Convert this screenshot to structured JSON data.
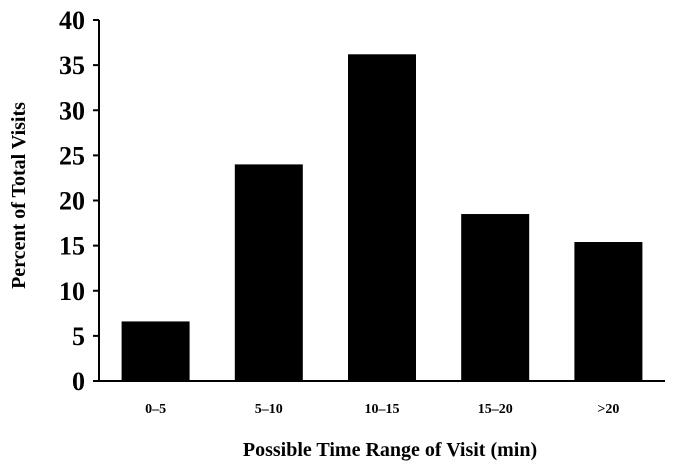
{
  "chart_data": {
    "type": "bar",
    "categories": [
      "0–5",
      "5–10",
      "10–15",
      "15–20",
      ">20"
    ],
    "values": [
      6.6,
      24.0,
      36.2,
      18.5,
      15.4
    ],
    "xlabel": "Possible Time Range of Visit (min)",
    "ylabel": "Percent of Total Visits",
    "ylim": [
      0,
      40
    ],
    "yticks": [
      0,
      5,
      10,
      15,
      20,
      25,
      30,
      35,
      40
    ],
    "grid": false,
    "legend": "none",
    "bar_color": "#000000",
    "axis_color": "#000000"
  }
}
